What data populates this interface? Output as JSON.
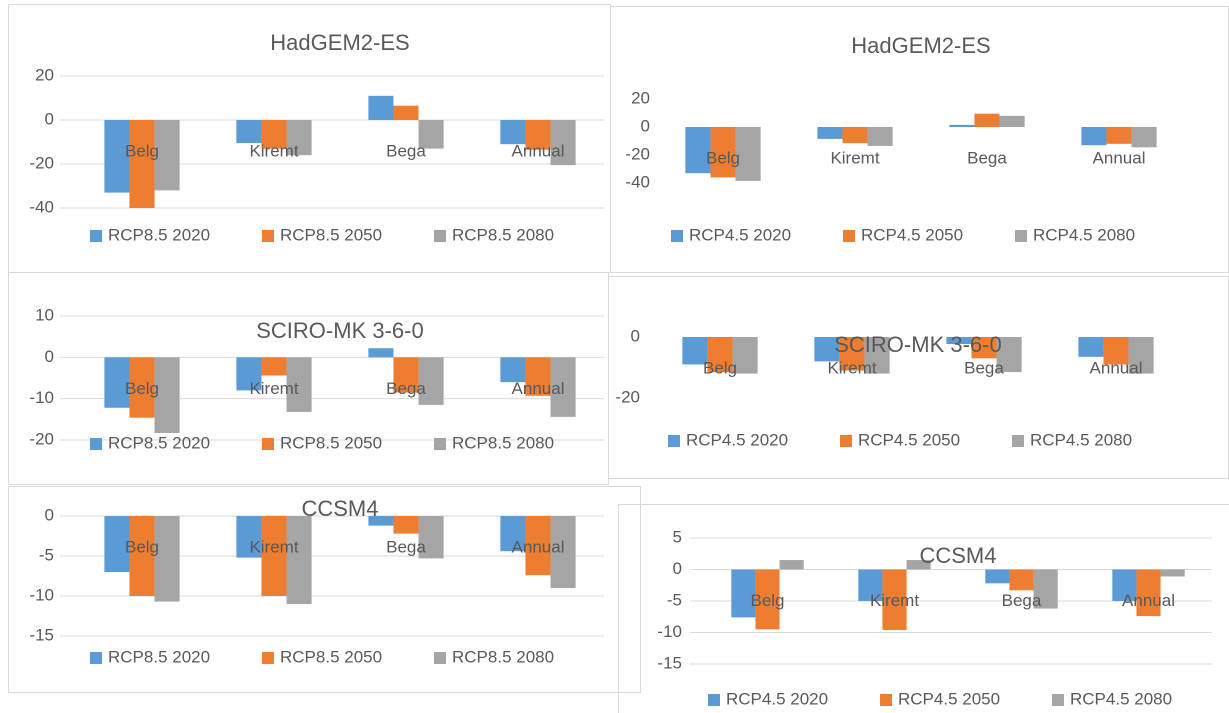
{
  "chart_data": [
    {
      "type": "bar",
      "title": "HadGEM2-ES",
      "categories": [
        "Belg",
        "Kiremt",
        "Bega",
        "Annual"
      ],
      "series": [
        {
          "name": "RCP8.5 2020",
          "color": "#5b9bd5",
          "values": [
            -33,
            -10.5,
            11,
            -11
          ]
        },
        {
          "name": "RCP8.5 2050",
          "color": "#ed7d31",
          "values": [
            -40,
            -13,
            6.5,
            -13.5
          ]
        },
        {
          "name": "RCP8.5 2080",
          "color": "#a5a5a5",
          "values": [
            -32,
            -16,
            -13,
            -20.5
          ]
        }
      ],
      "ylim": [
        -40,
        20
      ],
      "yticks": [
        -40,
        -20,
        0,
        20
      ],
      "grid": true,
      "legend": "bottom"
    },
    {
      "type": "bar",
      "title": "HadGEM2-ES",
      "categories": [
        "Belg",
        "Kiremt",
        "Bega",
        "Annual"
      ],
      "series": [
        {
          "name": "RCP4.5 2020",
          "color": "#5b9bd5",
          "values": [
            -33,
            -8.5,
            1.5,
            -13
          ]
        },
        {
          "name": "RCP4.5 2050",
          "color": "#ed7d31",
          "values": [
            -36,
            -11.5,
            9.5,
            -12
          ]
        },
        {
          "name": "RCP4.5 2080",
          "color": "#a5a5a5",
          "values": [
            -38.5,
            -13.5,
            8,
            -14.5
          ]
        }
      ],
      "ylim": [
        -40,
        20
      ],
      "yticks": [
        -40,
        -20,
        0,
        20
      ],
      "grid": false,
      "legend": "bottom"
    },
    {
      "type": "bar",
      "title": "SCIRO-MK 3-6-0",
      "categories": [
        "Belg",
        "Kiremt",
        "Bega",
        "Annual"
      ],
      "series": [
        {
          "name": "RCP8.5 2020",
          "color": "#5b9bd5",
          "values": [
            -12.2,
            -8,
            2.2,
            -6
          ]
        },
        {
          "name": "RCP8.5 2050",
          "color": "#ed7d31",
          "values": [
            -14.6,
            -4.4,
            -8.5,
            -9.3
          ]
        },
        {
          "name": "RCP8.5 2080",
          "color": "#a5a5a5",
          "values": [
            -18.3,
            -13.2,
            -11.5,
            -14.4
          ]
        }
      ],
      "ylim": [
        -20,
        10
      ],
      "yticks": [
        -20,
        -10,
        0,
        10
      ],
      "grid": true,
      "legend": "bottom"
    },
    {
      "type": "bar",
      "title": "SCIRO-MK 3-6-0",
      "categories": [
        "Belg",
        "Kiremt",
        "Bega",
        "Annual"
      ],
      "series": [
        {
          "name": "RCP4.5 2020",
          "color": "#5b9bd5",
          "values": [
            -9,
            -8,
            -2.3,
            -6.5
          ]
        },
        {
          "name": "RCP4.5 2050",
          "color": "#ed7d31",
          "values": [
            -11.5,
            -11,
            -7,
            -9
          ]
        },
        {
          "name": "RCP4.5 2080",
          "color": "#a5a5a5",
          "values": [
            -12,
            -12,
            -11.5,
            -12
          ]
        }
      ],
      "ylim": [
        -20,
        0
      ],
      "yticks": [
        -20,
        0
      ],
      "grid": false,
      "legend": "bottom"
    },
    {
      "type": "bar",
      "title": "CCSM4",
      "categories": [
        "Belg",
        "Kiremt",
        "Bega",
        "Annual"
      ],
      "series": [
        {
          "name": "RCP8.5 2020",
          "color": "#5b9bd5",
          "values": [
            -7,
            -5.2,
            -1.2,
            -4.4
          ]
        },
        {
          "name": "RCP8.5 2050",
          "color": "#ed7d31",
          "values": [
            -10,
            -10,
            -2.2,
            -7.4
          ]
        },
        {
          "name": "RCP8.5 2080",
          "color": "#a5a5a5",
          "values": [
            -10.7,
            -11,
            -5.3,
            -9
          ]
        }
      ],
      "ylim": [
        -15,
        0
      ],
      "yticks": [
        -15,
        -10,
        -5,
        0
      ],
      "grid": true,
      "legend": "bottom"
    },
    {
      "type": "bar",
      "title": "CCSM4",
      "categories": [
        "Belg",
        "Kiremt",
        "Bega",
        "Annual"
      ],
      "series": [
        {
          "name": "RCP4.5 2020",
          "color": "#5b9bd5",
          "values": [
            -7.6,
            -5,
            -2.2,
            -5
          ]
        },
        {
          "name": "RCP4.5 2050",
          "color": "#ed7d31",
          "values": [
            -9.5,
            -9.6,
            -3.3,
            -7.4
          ]
        },
        {
          "name": "RCP4.5 2080",
          "color": "#a5a5a5",
          "values": [
            1.5,
            1.5,
            -6.2,
            -1.1
          ]
        }
      ],
      "ylim": [
        -15,
        5
      ],
      "yticks": [
        -15,
        -10,
        -5,
        0,
        5
      ],
      "grid": true,
      "legend": "bottom"
    }
  ]
}
